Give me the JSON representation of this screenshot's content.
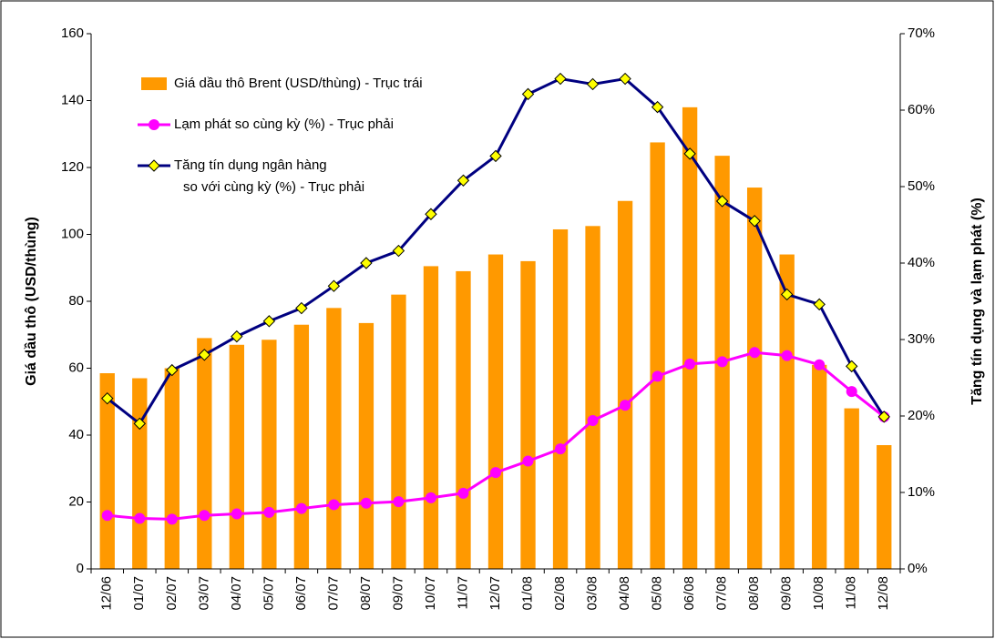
{
  "chart_data": {
    "type": "bar-line",
    "categories": [
      "12/06",
      "01/07",
      "02/07",
      "03/07",
      "04/07",
      "05/07",
      "06/07",
      "07/07",
      "08/07",
      "09/07",
      "10/07",
      "11/07",
      "12/07",
      "01/08",
      "02/08",
      "03/08",
      "04/08",
      "05/08",
      "06/08",
      "07/08",
      "08/08",
      "09/08",
      "10/08",
      "11/08",
      "12/08"
    ],
    "series": [
      {
        "name": "Giá dầu thô Brent (USD/thùng) - Trục trái",
        "type": "bar",
        "color": "#FF9900",
        "values": [
          58.5,
          57,
          60,
          69,
          67,
          68.5,
          73,
          78,
          73.5,
          82,
          90.5,
          89,
          94,
          92,
          101.5,
          102.5,
          110,
          127.5,
          138,
          123.5,
          114,
          94,
          61,
          48,
          37
        ]
      },
      {
        "name": "Lạm phát so cùng kỳ (%) - Trục phải",
        "type": "line",
        "axis": "y2",
        "color": "#FF00FF",
        "values": [
          7.0,
          6.6,
          6.5,
          7.0,
          7.2,
          7.4,
          7.9,
          8.4,
          8.6,
          8.8,
          9.3,
          9.9,
          12.6,
          14.1,
          15.7,
          19.4,
          21.4,
          25.2,
          26.8,
          27.1,
          28.3,
          27.9,
          26.7,
          23.2,
          19.9
        ]
      },
      {
        "name": "Tăng tín dụng ngân hàng\nso với cùng kỳ (%) - Trục phải",
        "type": "line",
        "axis": "y2",
        "color": "#000080",
        "marker_color": "#FFFF00",
        "values": [
          22.3,
          19.0,
          26.0,
          28.0,
          30.4,
          32.4,
          34.1,
          37.0,
          40.0,
          41.6,
          46.4,
          50.8,
          54.0,
          62.1,
          64.1,
          63.4,
          64.1,
          60.4,
          54.3,
          48.1,
          45.5,
          35.9,
          34.6,
          26.5,
          19.9
        ]
      }
    ],
    "ylabel": "Giá dầu thô (USD/thùng)",
    "y2label": "Tăng tín dụng và lạm phát (%)",
    "ylim": [
      0,
      160
    ],
    "yticks": [
      0,
      20,
      40,
      60,
      80,
      100,
      120,
      140,
      160
    ],
    "y2lim": [
      0,
      70
    ],
    "y2ticks": [
      {
        "value": 0,
        "label": "0%"
      },
      {
        "value": 10,
        "label": "10%"
      },
      {
        "value": 20,
        "label": "20%"
      },
      {
        "value": 30,
        "label": "30%"
      },
      {
        "value": 40,
        "label": "40%"
      },
      {
        "value": 50,
        "label": "50%"
      },
      {
        "value": 60,
        "label": "60%"
      },
      {
        "value": 70,
        "label": "70%"
      }
    ],
    "legend": "upper left"
  }
}
